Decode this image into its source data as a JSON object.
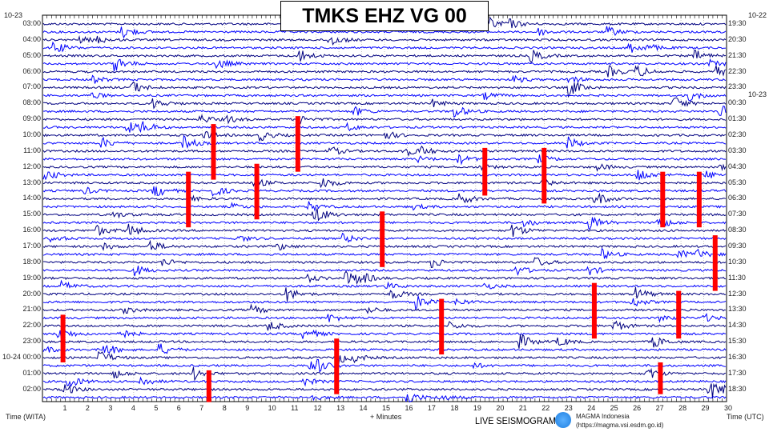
{
  "title": "TMKS EHZ VG 00",
  "chart_data": {
    "type": "line",
    "title": "TMKS EHZ VG 00",
    "xlabel": "+ Minutes",
    "ylabel_left": "Time (WITA)",
    "ylabel_right": "Time (UTC)",
    "x_range": [
      0,
      30
    ],
    "x_ticks": [
      "1",
      "2",
      "3",
      "4",
      "5",
      "6",
      "7",
      "8",
      "9",
      "10",
      "11",
      "12",
      "13",
      "14",
      "15",
      "16",
      "17",
      "18",
      "19",
      "20",
      "21",
      "22",
      "23",
      "24",
      "25",
      "26",
      "27",
      "28",
      "29",
      "30"
    ],
    "trace_count": 48,
    "trace_colors": [
      "#000080",
      "#0000ff"
    ],
    "left_labels": [
      "03:00",
      "04:00",
      "05:00",
      "06:00",
      "07:00",
      "08:00",
      "09:00",
      "10:00",
      "11:00",
      "12:00",
      "13:00",
      "14:00",
      "15:00",
      "16:00",
      "17:00",
      "18:00",
      "19:00",
      "20:00",
      "21:00",
      "22:00",
      "23:00",
      "10-24 00:00",
      "01:00",
      "02:00"
    ],
    "left_date": "10-23",
    "right_labels": [
      "19:30",
      "20:30",
      "21:30",
      "22:30",
      "23:30",
      "00:30",
      "01:30",
      "02:30",
      "03:30",
      "04:30",
      "05:30",
      "06:30",
      "07:30",
      "08:30",
      "09:30",
      "10:30",
      "11:30",
      "12:30",
      "13:30",
      "14:30",
      "15:30",
      "16:30",
      "17:30",
      "18:30"
    ],
    "right_dates": [
      "10-22",
      "10-23"
    ],
    "event_color": "#ff0000",
    "events": [
      {
        "minute": 7.5,
        "row": 13,
        "rows": 7
      },
      {
        "minute": 11.2,
        "row": 12,
        "rows": 7
      },
      {
        "minute": 6.4,
        "row": 19,
        "rows": 7
      },
      {
        "minute": 9.4,
        "row": 18,
        "rows": 7
      },
      {
        "minute": 14.9,
        "row": 24,
        "rows": 7
      },
      {
        "minute": 19.4,
        "row": 16,
        "rows": 6
      },
      {
        "minute": 22.0,
        "row": 16,
        "rows": 7
      },
      {
        "minute": 27.2,
        "row": 19,
        "rows": 7
      },
      {
        "minute": 28.8,
        "row": 19,
        "rows": 7
      },
      {
        "minute": 29.5,
        "row": 27,
        "rows": 7
      },
      {
        "minute": 24.2,
        "row": 33,
        "rows": 7
      },
      {
        "minute": 27.9,
        "row": 34,
        "rows": 6
      },
      {
        "minute": 0.9,
        "row": 37,
        "rows": 6
      },
      {
        "minute": 17.5,
        "row": 35,
        "rows": 7
      },
      {
        "minute": 12.9,
        "row": 40,
        "rows": 7
      },
      {
        "minute": 7.3,
        "row": 44,
        "rows": 4
      },
      {
        "minute": 27.1,
        "row": 43,
        "rows": 4
      }
    ]
  },
  "footer": {
    "live": "LIVE SEISMOGRAM",
    "org": "MAGMA Indonesia",
    "url": "(https://magma.vsi.esdm.go.id)"
  }
}
